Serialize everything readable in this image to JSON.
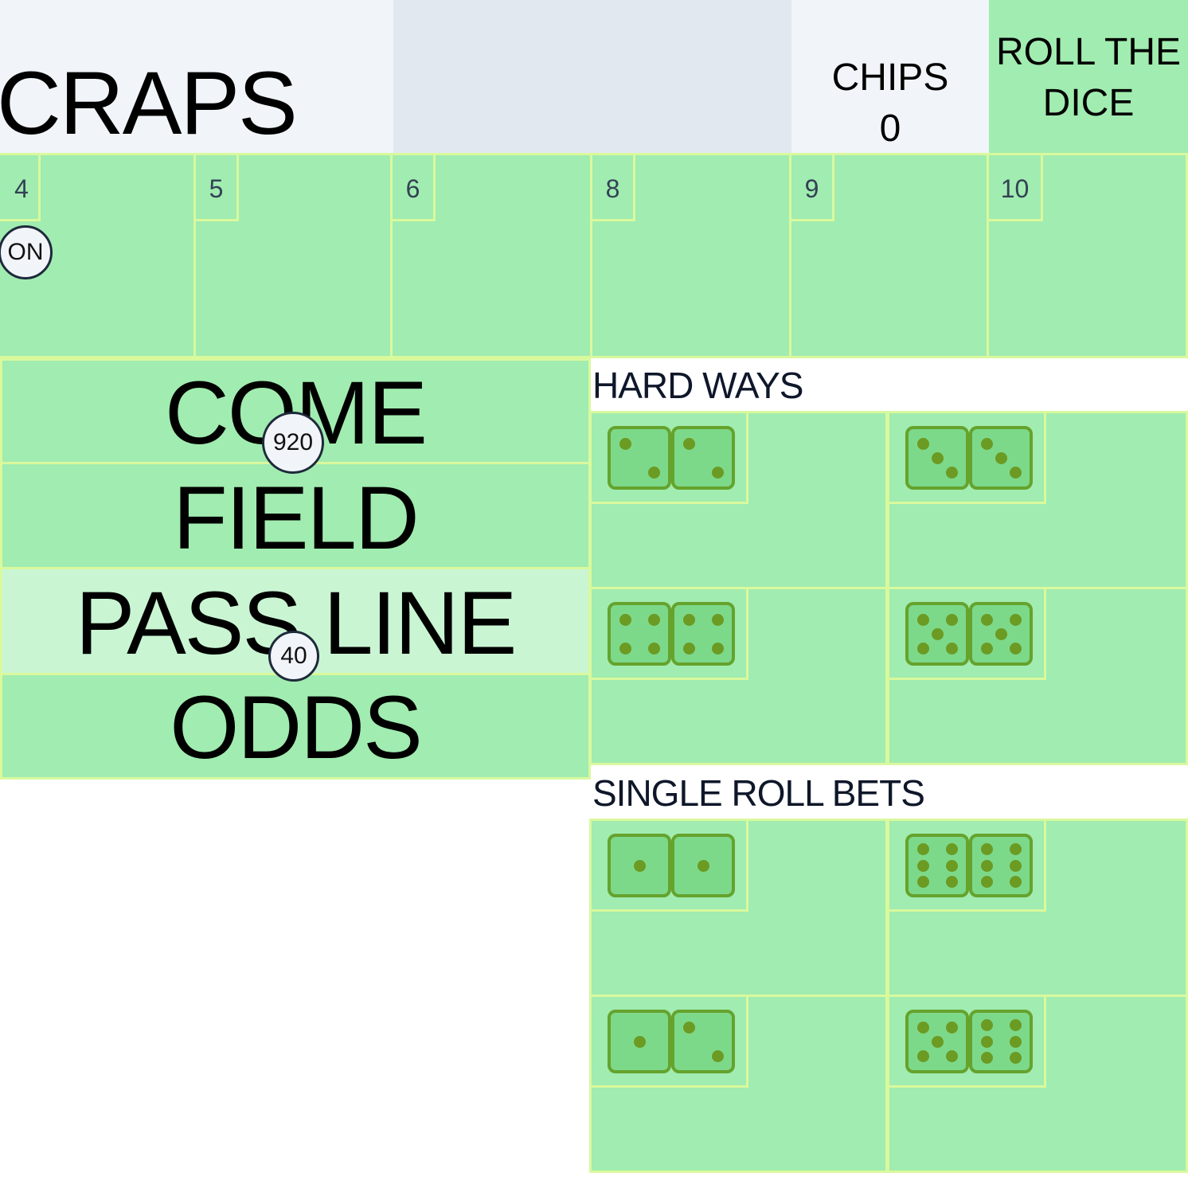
{
  "header": {
    "title": "CRAPS",
    "chips_label": "CHIPS",
    "chips_value": "0",
    "roll_line1": "ROLL THE",
    "roll_line2": "DICE"
  },
  "points": [
    {
      "number": "4",
      "marker": "ON"
    },
    {
      "number": "5"
    },
    {
      "number": "6"
    },
    {
      "number": "8"
    },
    {
      "number": "9"
    },
    {
      "number": "10"
    }
  ],
  "bets": {
    "come": {
      "label": "COME",
      "chip": "920"
    },
    "field": {
      "label": "FIELD"
    },
    "pass_line": {
      "label": "PASS LINE",
      "chip": "40"
    },
    "odds": {
      "label": "ODDS"
    }
  },
  "hard_ways": {
    "title": "HARD WAYS",
    "items": [
      {
        "dice": [
          2,
          2
        ]
      },
      {
        "dice": [
          3,
          3
        ]
      },
      {
        "dice": [
          4,
          4
        ]
      },
      {
        "dice": [
          5,
          5
        ]
      }
    ]
  },
  "single_roll": {
    "title": "SINGLE ROLL BETS",
    "items": [
      {
        "dice": [
          1,
          1
        ]
      },
      {
        "dice": [
          6,
          6
        ]
      },
      {
        "dice": [
          1,
          2
        ]
      },
      {
        "dice": [
          5,
          6
        ]
      }
    ]
  },
  "colors": {
    "felt": "#a1ecb0",
    "felt_light": "#c9f5d3",
    "border": "#d9f99d",
    "die_face": "#7dd98a",
    "die_border": "#65a32d",
    "pip": "#6b9b23"
  }
}
